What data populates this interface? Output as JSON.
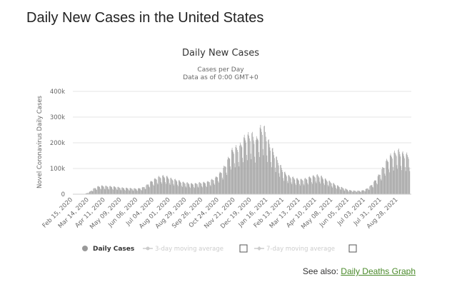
{
  "page": {
    "title": "Daily New Cases in the United States",
    "see_also_label": "See also:",
    "see_also_link": "Daily Deaths Graph"
  },
  "colors": {
    "bar": "#999999",
    "grid": "#e6e6e6",
    "link": "#4a8a2a",
    "legend_inactive": "#cccccc"
  },
  "chart_data": {
    "type": "bar",
    "title": "Daily New Cases",
    "subtitle_line1": "Cases per Day",
    "subtitle_line2": "Data as of 0:00 GMT+0",
    "ylabel": "Novel Coronavirus Daily Cases",
    "xlabel": "",
    "ylim": [
      0,
      400000
    ],
    "yticks": [
      {
        "value": 0,
        "label": "0"
      },
      {
        "value": 100000,
        "label": "100k"
      },
      {
        "value": 200000,
        "label": "200k"
      },
      {
        "value": 300000,
        "label": "300k"
      },
      {
        "value": 400000,
        "label": "400k"
      }
    ],
    "x_range": [
      "2020-02-15",
      "2021-09-20"
    ],
    "xticks": [
      "Feb 15, 2020",
      "Mar 14, 2020",
      "Apr 11, 2020",
      "May 09, 2020",
      "Jun 06, 2020",
      "Jul 04, 2020",
      "Aug 01, 2020",
      "Aug 29, 2020",
      "Sep 26, 2020",
      "Oct 24, 2020",
      "Nov 21, 2020",
      "Dec 19, 2020",
      "Jan 16, 2021",
      "Feb 13, 2021",
      "Mar 13, 2021",
      "Apr 10, 2021",
      "May 08, 2021",
      "Jun 05, 2021",
      "Jul 03, 2021",
      "Jul 31, 2021",
      "Aug 28, 2021"
    ],
    "series": [
      {
        "name": "Daily Cases",
        "weekly": [
          {
            "week_of": "2020-02-15",
            "value": 0
          },
          {
            "week_of": "2020-02-22",
            "value": 0
          },
          {
            "week_of": "2020-02-29",
            "value": 200
          },
          {
            "week_of": "2020-03-07",
            "value": 1500
          },
          {
            "week_of": "2020-03-14",
            "value": 8000
          },
          {
            "week_of": "2020-03-21",
            "value": 20000
          },
          {
            "week_of": "2020-03-28",
            "value": 28000
          },
          {
            "week_of": "2020-04-04",
            "value": 31000
          },
          {
            "week_of": "2020-04-11",
            "value": 30000
          },
          {
            "week_of": "2020-04-18",
            "value": 29000
          },
          {
            "week_of": "2020-04-25",
            "value": 28000
          },
          {
            "week_of": "2020-05-02",
            "value": 26000
          },
          {
            "week_of": "2020-05-09",
            "value": 24000
          },
          {
            "week_of": "2020-05-16",
            "value": 23000
          },
          {
            "week_of": "2020-05-23",
            "value": 22000
          },
          {
            "week_of": "2020-05-30",
            "value": 21000
          },
          {
            "week_of": "2020-06-06",
            "value": 21000
          },
          {
            "week_of": "2020-06-13",
            "value": 24000
          },
          {
            "week_of": "2020-06-20",
            "value": 32000
          },
          {
            "week_of": "2020-06-27",
            "value": 45000
          },
          {
            "week_of": "2020-07-04",
            "value": 55000
          },
          {
            "week_of": "2020-07-11",
            "value": 63000
          },
          {
            "week_of": "2020-07-18",
            "value": 67000
          },
          {
            "week_of": "2020-07-25",
            "value": 65000
          },
          {
            "week_of": "2020-08-01",
            "value": 58000
          },
          {
            "week_of": "2020-08-08",
            "value": 54000
          },
          {
            "week_of": "2020-08-15",
            "value": 50000
          },
          {
            "week_of": "2020-08-22",
            "value": 44000
          },
          {
            "week_of": "2020-08-29",
            "value": 42000
          },
          {
            "week_of": "2020-09-05",
            "value": 39000
          },
          {
            "week_of": "2020-09-12",
            "value": 39000
          },
          {
            "week_of": "2020-09-19",
            "value": 42000
          },
          {
            "week_of": "2020-09-26",
            "value": 43000
          },
          {
            "week_of": "2020-10-03",
            "value": 45000
          },
          {
            "week_of": "2020-10-10",
            "value": 52000
          },
          {
            "week_of": "2020-10-17",
            "value": 60000
          },
          {
            "week_of": "2020-10-24",
            "value": 75000
          },
          {
            "week_of": "2020-10-31",
            "value": 95000
          },
          {
            "week_of": "2020-11-07",
            "value": 125000
          },
          {
            "week_of": "2020-11-14",
            "value": 160000
          },
          {
            "week_of": "2020-11-21",
            "value": 170000
          },
          {
            "week_of": "2020-11-28",
            "value": 175000
          },
          {
            "week_of": "2020-12-05",
            "value": 205000
          },
          {
            "week_of": "2020-12-12",
            "value": 215000
          },
          {
            "week_of": "2020-12-19",
            "value": 220000
          },
          {
            "week_of": "2020-12-26",
            "value": 195000
          },
          {
            "week_of": "2021-01-02",
            "value": 240000
          },
          {
            "week_of": "2021-01-09",
            "value": 245000
          },
          {
            "week_of": "2021-01-16",
            "value": 195000
          },
          {
            "week_of": "2021-01-23",
            "value": 165000
          },
          {
            "week_of": "2021-01-30",
            "value": 135000
          },
          {
            "week_of": "2021-02-06",
            "value": 105000
          },
          {
            "week_of": "2021-02-13",
            "value": 80000
          },
          {
            "week_of": "2021-02-20",
            "value": 68000
          },
          {
            "week_of": "2021-02-27",
            "value": 62000
          },
          {
            "week_of": "2021-03-06",
            "value": 57000
          },
          {
            "week_of": "2021-03-13",
            "value": 54000
          },
          {
            "week_of": "2021-03-20",
            "value": 56000
          },
          {
            "week_of": "2021-03-27",
            "value": 62000
          },
          {
            "week_of": "2021-04-03",
            "value": 66000
          },
          {
            "week_of": "2021-04-10",
            "value": 70000
          },
          {
            "week_of": "2021-04-17",
            "value": 66000
          },
          {
            "week_of": "2021-04-24",
            "value": 56000
          },
          {
            "week_of": "2021-05-01",
            "value": 48000
          },
          {
            "week_of": "2021-05-08",
            "value": 40000
          },
          {
            "week_of": "2021-05-15",
            "value": 32000
          },
          {
            "week_of": "2021-05-22",
            "value": 26000
          },
          {
            "week_of": "2021-05-29",
            "value": 20000
          },
          {
            "week_of": "2021-06-05",
            "value": 15000
          },
          {
            "week_of": "2021-06-12",
            "value": 13000
          },
          {
            "week_of": "2021-06-19",
            "value": 12500
          },
          {
            "week_of": "2021-06-26",
            "value": 13000
          },
          {
            "week_of": "2021-07-03",
            "value": 18000
          },
          {
            "week_of": "2021-07-10",
            "value": 28000
          },
          {
            "week_of": "2021-07-17",
            "value": 45000
          },
          {
            "week_of": "2021-07-24",
            "value": 65000
          },
          {
            "week_of": "2021-07-31",
            "value": 90000
          },
          {
            "week_of": "2021-08-07",
            "value": 120000
          },
          {
            "week_of": "2021-08-14",
            "value": 140000
          },
          {
            "week_of": "2021-08-21",
            "value": 150000
          },
          {
            "week_of": "2021-08-28",
            "value": 160000
          },
          {
            "week_of": "2021-09-04",
            "value": 150000
          },
          {
            "week_of": "2021-09-11",
            "value": 145000
          }
        ]
      }
    ],
    "legend": [
      {
        "label": "Daily Cases",
        "active": true
      },
      {
        "label": "3-day moving average",
        "active": false
      },
      {
        "label": "7-day moving average",
        "active": false
      }
    ],
    "legend_placement": "bottom",
    "grid": true
  }
}
